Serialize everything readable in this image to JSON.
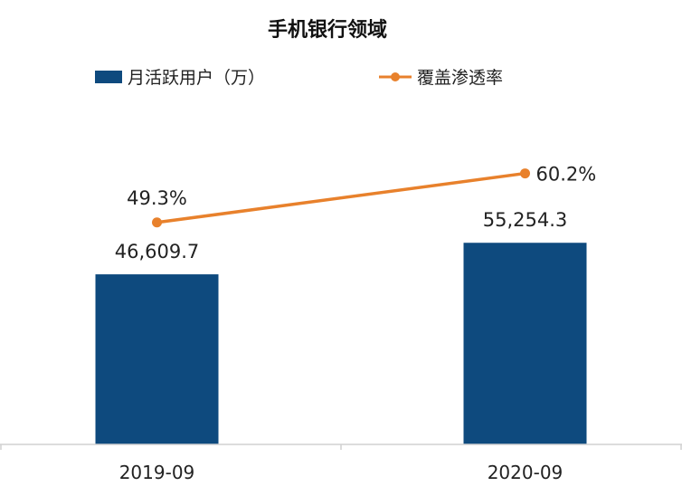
{
  "chart_data": {
    "type": "bar",
    "title": "手机银行领域",
    "categories": [
      "2019-09",
      "2020-09"
    ],
    "series": [
      {
        "name": "月活跃用户（万）",
        "type": "bar",
        "axis": "left",
        "values": [
          46609.7,
          55254.3
        ],
        "labels": [
          "46,609.7",
          "55,254.3"
        ],
        "color": "#0e4a7e"
      },
      {
        "name": "覆盖渗透率",
        "type": "line",
        "axis": "right",
        "values": [
          49.3,
          60.2
        ],
        "labels": [
          "49.3%",
          "60.2%"
        ],
        "color": "#e8812c"
      }
    ],
    "ylim": [
      0,
      95000
    ],
    "y2lim": [
      0,
      77
    ],
    "grid": false,
    "legend": "top"
  }
}
